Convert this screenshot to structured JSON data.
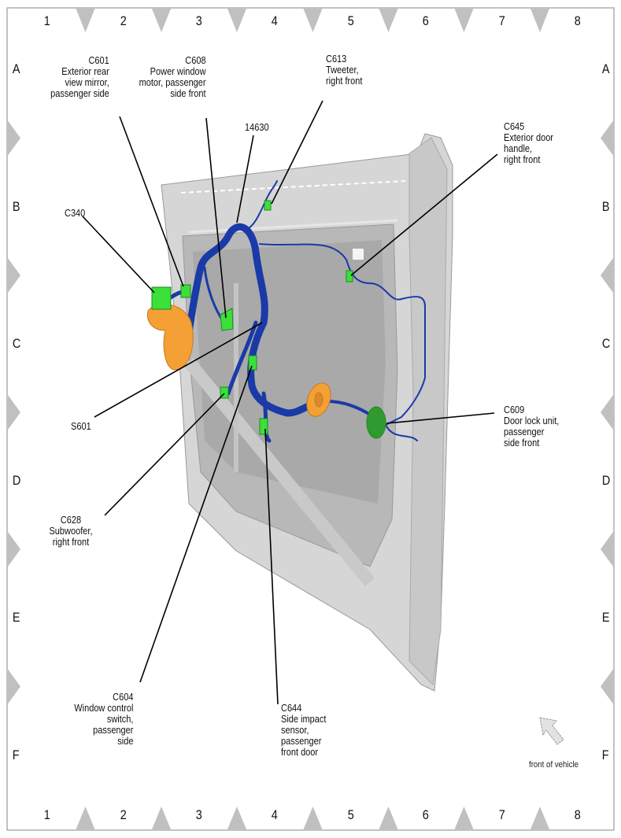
{
  "grid": {
    "columns": [
      "1",
      "2",
      "3",
      "4",
      "5",
      "6",
      "7",
      "8"
    ],
    "rows": [
      "A",
      "B",
      "C",
      "D",
      "E",
      "F"
    ]
  },
  "callouts": [
    {
      "id": "C601",
      "text": "C601\nExterior rear\nview mirror,\npassenger side"
    },
    {
      "id": "C608",
      "text": "C608\nPower window\nmotor, passenger\nside front"
    },
    {
      "id": "14630",
      "text": "14630"
    },
    {
      "id": "C613",
      "text": "C613\nTweeter,\nright front"
    },
    {
      "id": "C645",
      "text": "C645\nExterior door\nhandle,\nright front"
    },
    {
      "id": "C340",
      "text": "C340"
    },
    {
      "id": "S601",
      "text": "S601"
    },
    {
      "id": "C609",
      "text": "C609\nDoor lock unit,\npassenger\nside front"
    },
    {
      "id": "C628",
      "text": "C628\nSubwoofer,\nright front"
    },
    {
      "id": "C604",
      "text": "C604\nWindow control\nswitch,\npassenger\nside"
    },
    {
      "id": "C644",
      "text": "C644\nSide impact\nsensor,\npassenger\nfront door"
    }
  ],
  "orientation": {
    "label": "front of vehicle",
    "icon": "arrow-up-left-icon"
  },
  "colors": {
    "harness": "#1a3aa8",
    "connector": "#3be03b",
    "orange_part": "#f5a035",
    "door": "#d4d4d4",
    "grid_marker": "#c0c0c0"
  }
}
